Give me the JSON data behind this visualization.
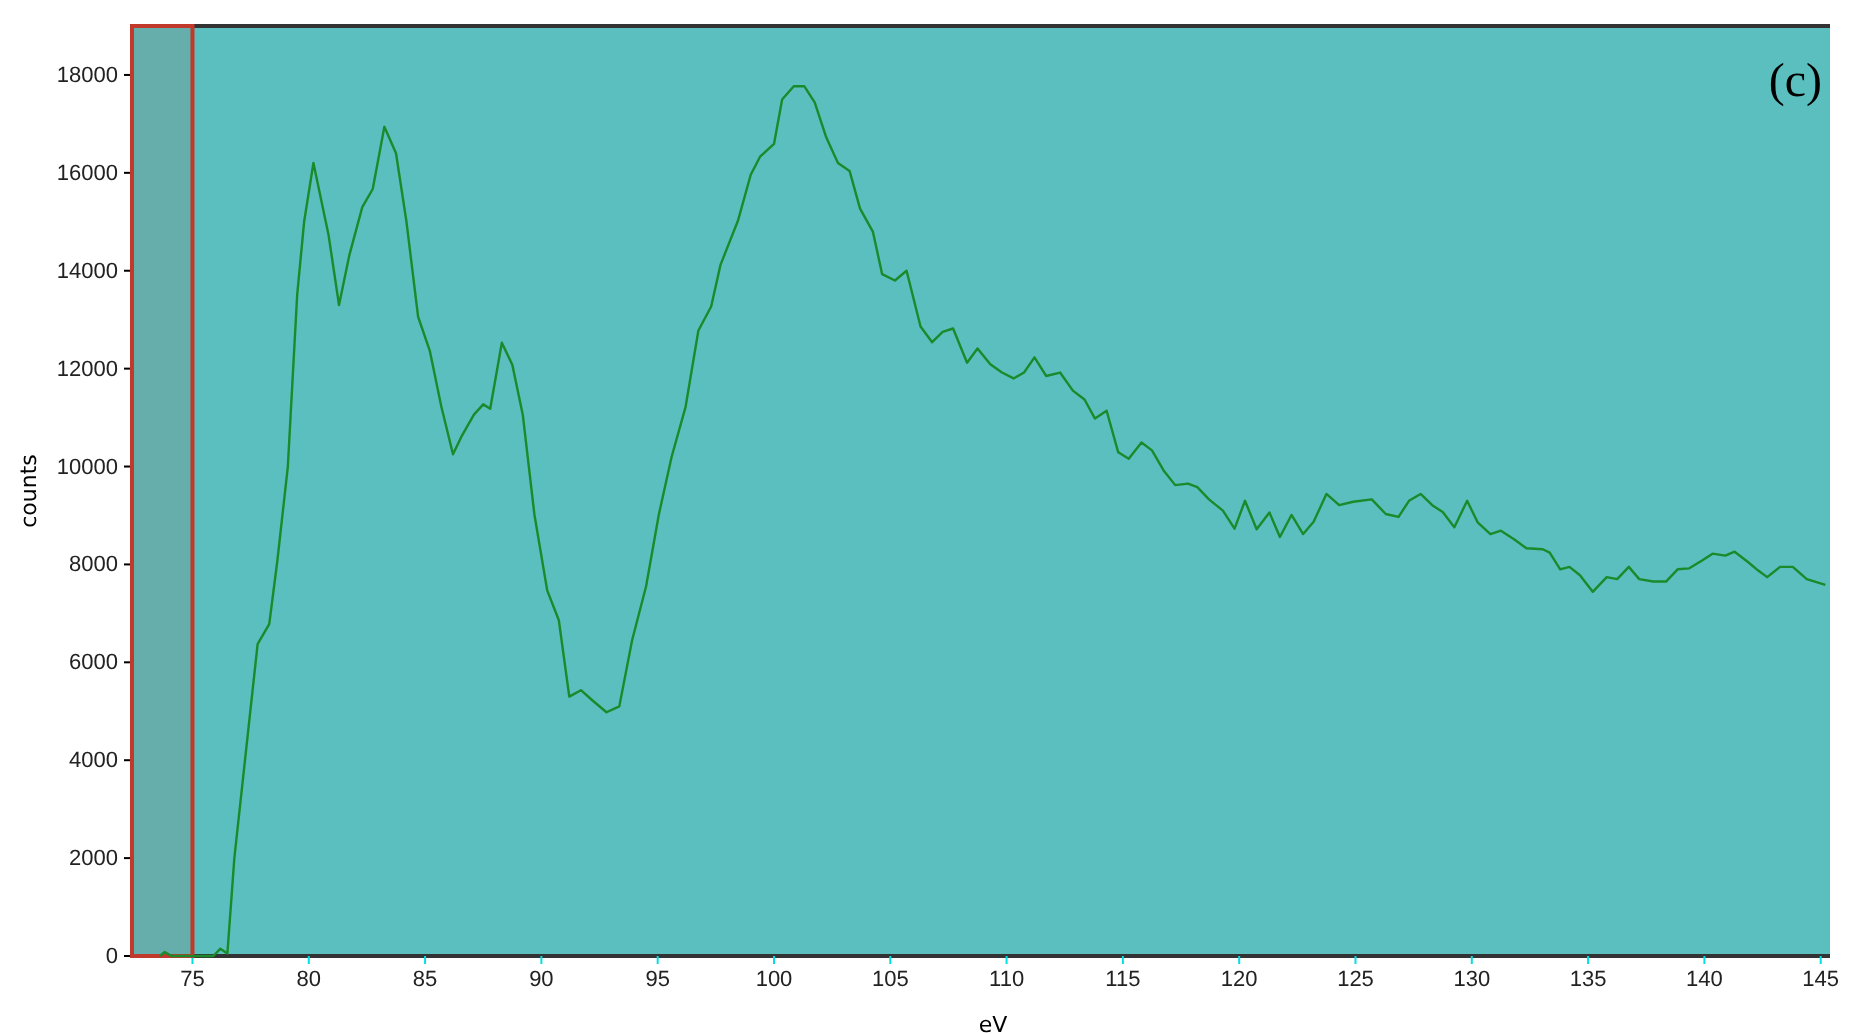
{
  "chart_data": {
    "type": "line",
    "xlabel": "eV",
    "ylabel": "counts",
    "annotations": [
      "(c)"
    ],
    "xlim": [
      72.4,
      145.4
    ],
    "ylim": [
      0,
      19000
    ],
    "xticks": [
      75,
      80,
      85,
      90,
      95,
      100,
      105,
      110,
      115,
      120,
      125,
      130,
      135,
      140,
      145
    ],
    "yticks": [
      0,
      2000,
      4000,
      6000,
      8000,
      10000,
      12000,
      14000,
      16000,
      18000
    ],
    "grid": false,
    "bands": [
      {
        "axis": "x",
        "from": 72.4,
        "to": 75,
        "color": "#c0392b"
      }
    ],
    "series": [
      {
        "color": "#1a8a2a",
        "x": [
          73.6,
          73.8,
          74.1,
          75.9,
          76.2,
          76.5,
          76.8,
          77.8,
          78.3,
          78.65,
          79.1,
          79.5,
          79.8,
          80.2,
          80.85,
          81.3,
          81.75,
          82.3,
          82.75,
          83.25,
          83.75,
          84.2,
          84.7,
          85.2,
          85.7,
          86.2,
          86.55,
          87.1,
          87.5,
          87.8,
          88.3,
          88.75,
          89.2,
          89.7,
          90.25,
          90.75,
          91.2,
          91.7,
          92.2,
          92.8,
          93.35,
          93.9,
          94.5,
          95.05,
          95.6,
          96.2,
          96.75,
          97.3,
          97.7,
          98.45,
          99.0,
          99.4,
          100.0,
          100.35,
          100.85,
          101.3,
          101.75,
          102.25,
          102.75,
          103.25,
          103.7,
          104.25,
          104.65,
          105.2,
          105.7,
          106.3,
          106.8,
          107.25,
          107.7,
          108.3,
          108.75,
          109.3,
          109.8,
          110.3,
          110.75,
          111.2,
          111.7,
          112.3,
          112.85,
          113.35,
          113.8,
          114.3,
          114.8,
          115.25,
          115.8,
          116.25,
          116.75,
          117.25,
          117.8,
          118.2,
          118.7,
          119.3,
          119.8,
          120.25,
          120.75,
          121.3,
          121.75,
          122.25,
          122.75,
          123.2,
          123.75,
          124.3,
          124.9,
          125.7,
          126.3,
          126.85,
          127.3,
          127.8,
          128.3,
          128.75,
          129.25,
          129.8,
          130.25,
          130.8,
          131.25,
          131.8,
          132.35,
          133.05,
          133.35,
          133.8,
          134.2,
          134.65,
          135.2,
          135.8,
          136.25,
          136.75,
          137.2,
          137.8,
          138.35,
          138.85,
          139.35,
          139.9,
          140.35,
          140.9,
          141.3,
          141.9,
          142.3,
          142.7,
          143.25,
          143.8,
          144.4,
          145.2
        ],
        "values": [
          0,
          80,
          0,
          0,
          150,
          50,
          2000,
          6370,
          6780,
          8080,
          10000,
          13500,
          15000,
          16200,
          14730,
          13300,
          14330,
          15300,
          15670,
          16940,
          16400,
          15000,
          13060,
          12370,
          11220,
          10250,
          10600,
          11060,
          11270,
          11180,
          12530,
          12080,
          11060,
          9020,
          7470,
          6860,
          5300,
          5430,
          5220,
          4980,
          5100,
          6450,
          7550,
          9020,
          10200,
          11220,
          12780,
          13270,
          14120,
          15020,
          15960,
          16330,
          16590,
          17500,
          17770,
          17770,
          17440,
          16720,
          16200,
          16040,
          15270,
          14800,
          13930,
          13800,
          14000,
          12860,
          12540,
          12750,
          12820,
          12120,
          12410,
          12090,
          11920,
          11800,
          11920,
          12230,
          11850,
          11920,
          11550,
          11370,
          10980,
          11140,
          10290,
          10160,
          10490,
          10330,
          9920,
          9620,
          9650,
          9580,
          9330,
          9100,
          8730,
          9300,
          8720,
          9060,
          8560,
          9010,
          8620,
          8870,
          9440,
          9210,
          9280,
          9330,
          9030,
          8970,
          9300,
          9440,
          9210,
          9070,
          8760,
          9300,
          8860,
          8620,
          8690,
          8520,
          8330,
          8310,
          8240,
          7900,
          7950,
          7780,
          7440,
          7740,
          7700,
          7950,
          7700,
          7650,
          7650,
          7900,
          7920,
          8080,
          8220,
          8180,
          8260,
          8040,
          7880,
          7740,
          7950,
          7950,
          7700,
          7580
        ]
      }
    ]
  }
}
